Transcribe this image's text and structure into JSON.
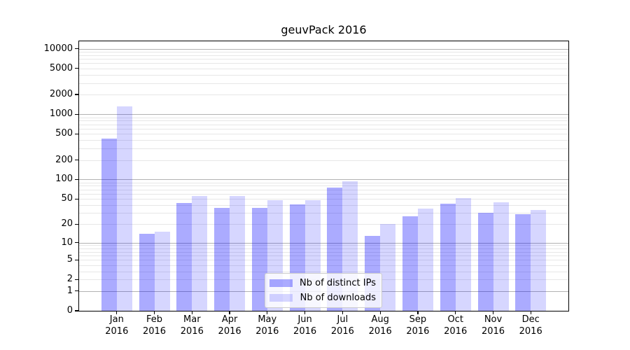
{
  "figure": {
    "title": "geuvPack 2016"
  },
  "legend": {
    "items": [
      "Nb of distinct IPs",
      "Nb of downloads"
    ]
  },
  "chart_data": {
    "type": "bar",
    "title": "geuvPack 2016",
    "categories": [
      "Jan",
      "Feb",
      "Mar",
      "Apr",
      "May",
      "Jun",
      "Jul",
      "Aug",
      "Sep",
      "Oct",
      "Nov",
      "Dec"
    ],
    "x_year_label": "2016",
    "series": [
      {
        "name": "Nb of distinct IPs",
        "color": "rgba(0,0,255,0.33)",
        "values": [
          420,
          14,
          43,
          36,
          36,
          41,
          75,
          13,
          27,
          42,
          30,
          29
        ]
      },
      {
        "name": "Nb of downloads",
        "color": "rgba(0,0,255,0.16)",
        "values": [
          1320,
          15,
          55,
          56,
          48,
          48,
          95,
          20,
          35,
          51,
          44,
          34
        ]
      }
    ],
    "xlabel": "",
    "ylabel": "",
    "yscale": "log10(1+v)",
    "ylim": [
      0,
      13000
    ],
    "yticks": [
      0,
      1,
      2,
      5,
      10,
      20,
      50,
      100,
      200,
      500,
      1000,
      2000,
      5000,
      10000
    ],
    "grid": {
      "horizontal": true,
      "major_values": [
        1,
        10,
        100,
        1000,
        10000
      ],
      "minor_rule": "2-9 per decade",
      "major_color": "#b2b2b2",
      "minor_color": "#e7e7e7"
    },
    "legend_position": "lower center inside"
  }
}
